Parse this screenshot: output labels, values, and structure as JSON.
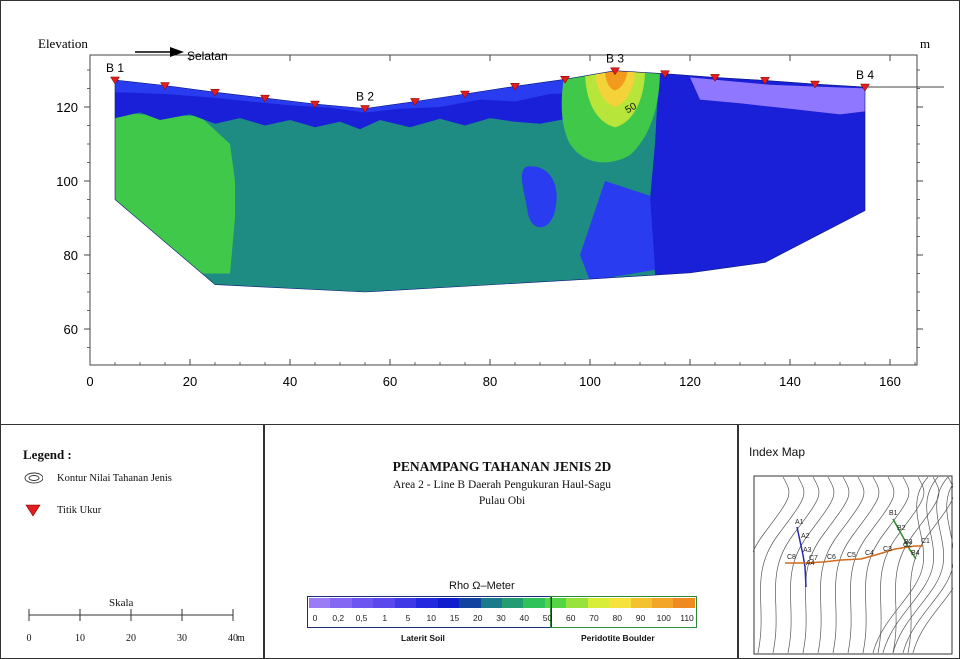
{
  "section": {
    "y_axis_label": "Elevation",
    "unit_label": "m",
    "direction_label": "Selatan",
    "x_ticks": [
      "0",
      "20",
      "40",
      "60",
      "80",
      "100",
      "120",
      "140",
      "160"
    ],
    "y_ticks": [
      "60",
      "80",
      "100",
      "120"
    ],
    "stations": [
      "B 1",
      "B 2",
      "B 3",
      "B 4"
    ],
    "contour_label": "50",
    "measurement_points_x": [
      5,
      15,
      25,
      35,
      45,
      55,
      65,
      75,
      85,
      95,
      105,
      115,
      125,
      135,
      145,
      155
    ],
    "colors": {
      "deep_blue": "#1a1fd8",
      "blue": "#2a3cf0",
      "violet": "#8f78ff",
      "teal": "#1f8c84",
      "green": "#40c84a",
      "yellow": "#f4d23a",
      "orange": "#f29a1c",
      "marker": "#e11d1d"
    }
  },
  "legend": {
    "heading": "Legend :",
    "items": [
      {
        "label": "Kontur Nilai Tahanan Jenis",
        "icon": "contour-icon"
      },
      {
        "label": "Titik Ukur",
        "icon": "triangle-marker-icon"
      }
    ],
    "scale_title": "Skala",
    "scale_ticks": [
      "0",
      "10",
      "20",
      "30",
      "40"
    ],
    "scale_unit": "m"
  },
  "title_block": {
    "title": "PENAMPANG TAHANAN JENIS 2D",
    "subtitle1": "Area 2 - Line B Daerah Pengukuran Haul-Sagu",
    "subtitle2": "Pulau Obi"
  },
  "colorbar": {
    "title": "Rho Ω–Meter",
    "labels": [
      "0",
      "0,2",
      "0,5",
      "1",
      "5",
      "10",
      "15",
      "20",
      "30",
      "40",
      "50",
      "60",
      "70",
      "80",
      "90",
      "100",
      "110"
    ],
    "colors": [
      "#9a7cf6",
      "#8468f4",
      "#6c55f0",
      "#5b48ec",
      "#3f38e6",
      "#2229df",
      "#0f1dcc",
      "#12439e",
      "#187a8a",
      "#239c74",
      "#2fc25a",
      "#54d544",
      "#98e23d",
      "#d8ec3a",
      "#f6e23c",
      "#f5c22f",
      "#f2a528",
      "#ef8a22"
    ],
    "group1": "Laterit Soil",
    "group2": "Peridotite Boulder"
  },
  "index_map": {
    "title": "Index Map",
    "line_a": [
      "A1",
      "A2",
      "A3",
      "A4"
    ],
    "line_b": [
      "B1",
      "B2",
      "B3",
      "B4"
    ],
    "line_c": [
      "C1",
      "C2",
      "C3",
      "C4",
      "C5",
      "C6",
      "C7",
      "C8"
    ]
  }
}
